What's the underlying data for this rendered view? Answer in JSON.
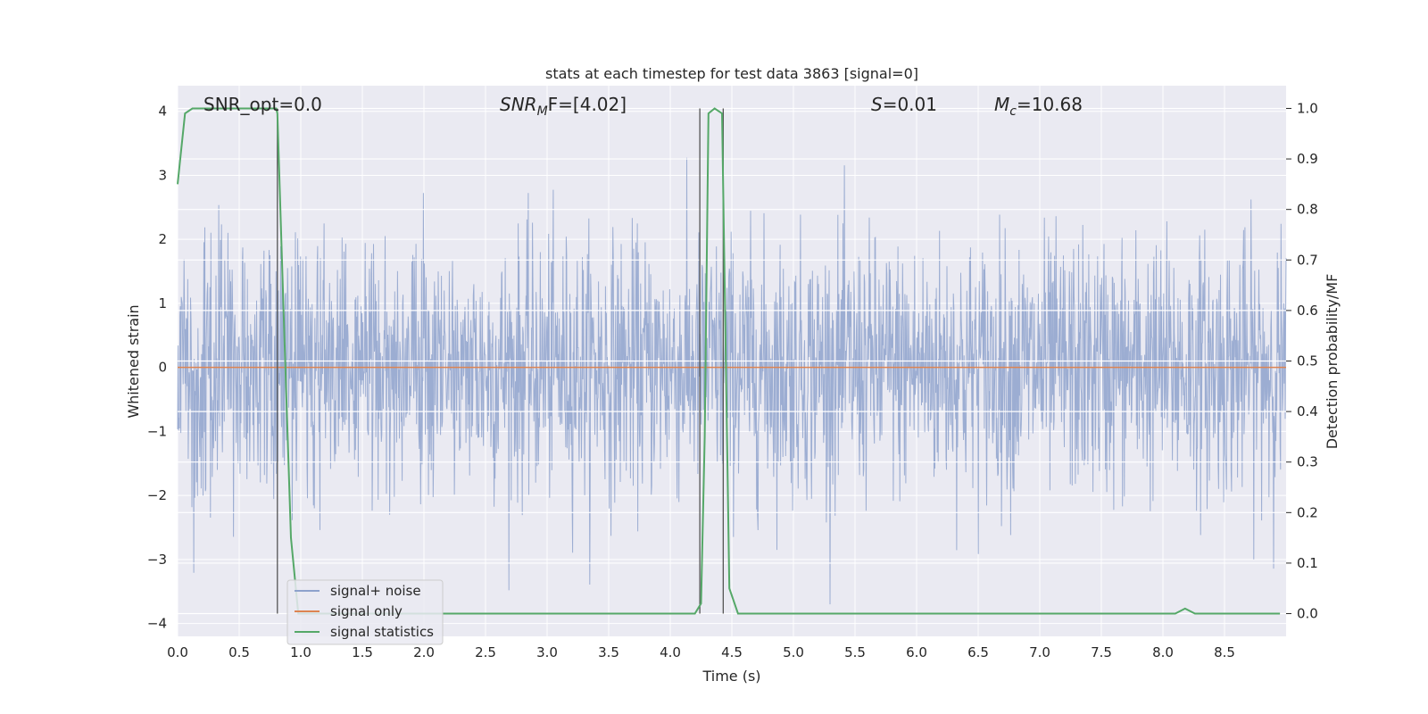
{
  "chart_data": {
    "type": "line",
    "title": "stats at each timestep for test data 3863 [signal=0]",
    "xlabel": "Time (s)",
    "ylabel_left": "Whitened strain",
    "ylabel_right": "Detection probability/MF",
    "xlim": [
      0.0,
      9.0
    ],
    "ylim_left": [
      -4.2,
      4.4
    ],
    "ylim_right": [
      -0.045,
      1.045
    ],
    "x_ticks": [
      "0.0",
      "0.5",
      "1.0",
      "1.5",
      "2.0",
      "2.5",
      "3.0",
      "3.5",
      "4.0",
      "4.5",
      "5.0",
      "5.5",
      "6.0",
      "6.5",
      "7.0",
      "7.5",
      "8.0",
      "8.5"
    ],
    "y_left_ticks": [
      "4",
      "3",
      "2",
      "1",
      "0",
      "−1",
      "−2",
      "−3",
      "−4"
    ],
    "y_right_ticks": [
      "1.0",
      "0.9",
      "0.8",
      "0.7",
      "0.6",
      "0.5",
      "0.4",
      "0.3",
      "0.2",
      "0.1",
      "0.0"
    ],
    "grid": true,
    "legend_position": "lower-left",
    "annotations": {
      "snr_opt": "SNR_opt=0.0",
      "snr_mf_prefix": "SNR",
      "snr_mf_sub": "M",
      "snr_mf_suffix": "F=[4.02]",
      "s_label": "S",
      "s_value": "=0.01",
      "mc_label": "M",
      "mc_sub": "c",
      "mc_value": "=10.68"
    },
    "series": [
      {
        "name": "signal+ noise",
        "color": "#8ea2cc",
        "note": "noise strain, roughly symmetric between -3.7 and 3.8",
        "points_summary": {
          "min": -3.7,
          "max": 3.8
        }
      },
      {
        "name": "signal only",
        "color": "#dd8452",
        "points": [
          [
            0.0,
            0.0
          ],
          [
            9.0,
            0.0
          ]
        ]
      },
      {
        "name": "signal statistics",
        "color": "#55a868",
        "axis": "right",
        "points": [
          [
            0.0,
            0.85
          ],
          [
            0.06,
            0.99
          ],
          [
            0.12,
            1.0
          ],
          [
            0.8,
            1.0
          ],
          [
            0.81,
            0.99
          ],
          [
            0.86,
            0.6
          ],
          [
            0.92,
            0.15
          ],
          [
            0.98,
            0.0
          ],
          [
            4.2,
            0.0
          ],
          [
            4.25,
            0.02
          ],
          [
            4.28,
            0.35
          ],
          [
            4.31,
            0.99
          ],
          [
            4.36,
            1.0
          ],
          [
            4.42,
            0.99
          ],
          [
            4.48,
            0.05
          ],
          [
            4.55,
            0.0
          ],
          [
            8.1,
            0.0
          ],
          [
            8.18,
            0.01
          ],
          [
            8.26,
            0.0
          ],
          [
            8.95,
            0.0
          ]
        ]
      }
    ],
    "vertical_lines": [
      0.81,
      4.24,
      4.43
    ]
  }
}
